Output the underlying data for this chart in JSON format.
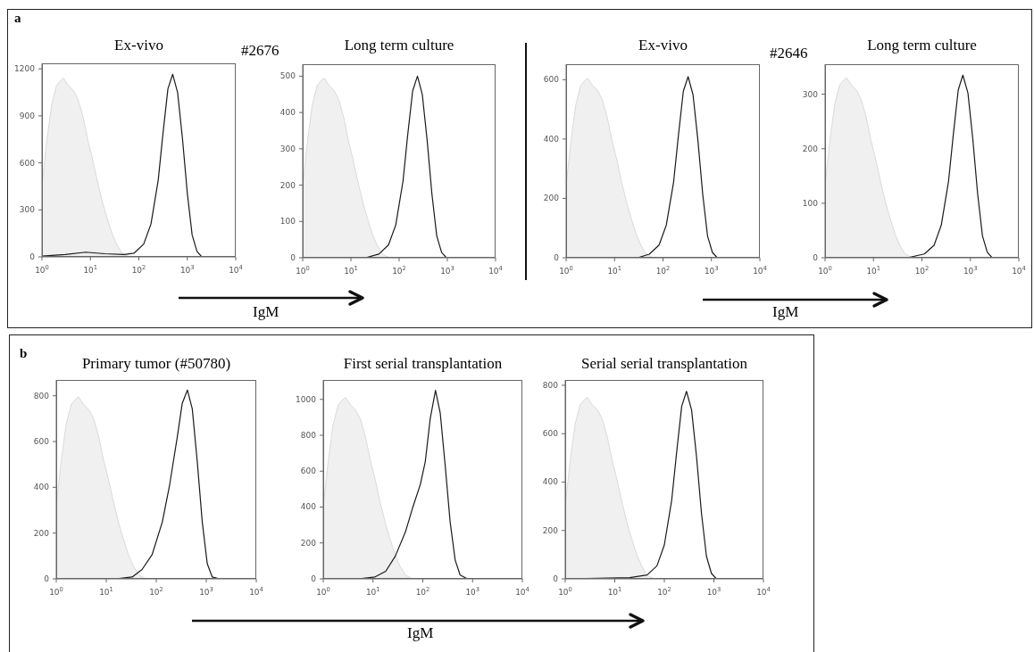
{
  "chart_data": [
    {
      "type": "line",
      "title": "Ex-vivo",
      "annotations": [
        "a",
        "#2676",
        "IgM"
      ],
      "log": "x",
      "xlim": [
        1,
        10000
      ],
      "xticks": [
        {
          "value": 1,
          "label": "10$^{0}$"
        },
        {
          "value": 10,
          "label": "10$^{1}$"
        },
        {
          "value": 100,
          "label": "10$^{2}$"
        },
        {
          "value": 1000,
          "label": "10$^{3}$"
        },
        {
          "value": 10000,
          "label": "10$^{4}$"
        }
      ],
      "ylim": [
        0,
        1235
      ],
      "yticks": [
        0,
        300,
        600,
        900,
        1200
      ],
      "series": [
        {
          "type": "area",
          "color": "#f0f0f0",
          "x": [
            1,
            1.26,
            1.58,
            2,
            2.5,
            2.8,
            3.5,
            4.5,
            5.6,
            7.1,
            8.9,
            11,
            14,
            18,
            22,
            28,
            35,
            45,
            63,
            160,
            10000
          ],
          "values": [
            456,
            741,
            969,
            1094,
            1129,
            1140,
            1094,
            1060,
            1003,
            889,
            741,
            627,
            479,
            342,
            251,
            148,
            80,
            23,
            0,
            0,
            0
          ]
        },
        {
          "color": "#1a1a1a",
          "x": [
            1,
            3,
            8,
            20,
            50,
            79,
            126,
            178,
            251,
            316,
            398,
            500,
            631,
            794,
            1000,
            1259,
            1585,
            1995,
            2818,
            10000
          ],
          "values": [
            5,
            15,
            30,
            20,
            15,
            23,
            82,
            210,
            489,
            792,
            1072,
            1165,
            1049,
            757,
            408,
            140,
            35,
            0,
            0,
            0
          ]
        }
      ]
    },
    {
      "type": "line",
      "title": "Long term culture",
      "log": "x",
      "xlim": [
        1,
        10000
      ],
      "xticks": [
        {
          "value": 1,
          "label": "10$^{0}$"
        },
        {
          "value": 10,
          "label": "10$^{1}$"
        },
        {
          "value": 100,
          "label": "10$^{2}$"
        },
        {
          "value": 1000,
          "label": "10$^{3}$"
        },
        {
          "value": 10000,
          "label": "10$^{4}$"
        }
      ],
      "ylim": [
        0,
        533
      ],
      "yticks": [
        0,
        100,
        200,
        300,
        400,
        500
      ],
      "series": [
        {
          "type": "area",
          "color": "#f0f0f0",
          "x": [
            1,
            1.26,
            1.58,
            2,
            2.5,
            2.8,
            3.5,
            4.5,
            5.6,
            7.1,
            8.9,
            11,
            14,
            18,
            22,
            28,
            35,
            45,
            63,
            160,
            10000
          ],
          "values": [
            198,
            322,
            421,
            475,
            490,
            495,
            475,
            460,
            436,
            386,
            322,
            272,
            208,
            149,
            109,
            64,
            35,
            10,
            0,
            0,
            0
          ]
        },
        {
          "color": "#1a1a1a",
          "x": [
            1,
            20,
            38,
            60,
            85,
            120,
            151,
            191,
            240,
            302,
            380,
            479,
            603,
            759,
            955,
            1349,
            10000
          ],
          "values": [
            0,
            0,
            10,
            35,
            90,
            210,
            340,
            460,
            500,
            450,
            325,
            175,
            60,
            15,
            0,
            0,
            0
          ]
        }
      ]
    },
    {
      "type": "line",
      "title": "Ex-vivo",
      "annotations": [
        "#2646",
        "IgM"
      ],
      "log": "x",
      "xlim": [
        1,
        10000
      ],
      "xticks": [
        {
          "value": 1,
          "label": "10$^{0}$"
        },
        {
          "value": 10,
          "label": "10$^{1}$"
        },
        {
          "value": 100,
          "label": "10$^{2}$"
        },
        {
          "value": 1000,
          "label": "10$^{3}$"
        },
        {
          "value": 10000,
          "label": "10$^{4}$"
        }
      ],
      "ylim": [
        0,
        652
      ],
      "yticks": [
        0,
        200,
        400,
        600
      ],
      "series": [
        {
          "type": "area",
          "color": "#f0f0f0",
          "x": [
            1,
            1.26,
            1.58,
            2,
            2.5,
            2.8,
            3.5,
            4.5,
            5.6,
            7.1,
            8.9,
            11,
            14,
            18,
            22,
            28,
            35,
            45,
            63,
            160,
            10000
          ],
          "values": [
            242,
            393,
            514,
            581,
            599,
            605,
            581,
            563,
            532,
            472,
            393,
            333,
            254,
            182,
            133,
            79,
            42,
            12,
            0,
            0,
            0
          ]
        },
        {
          "color": "#1a1a1a",
          "x": [
            1,
            30,
            52,
            83,
            117,
            166,
            209,
            263,
            330,
            417,
            525,
            661,
            832,
            1047,
            1318,
            1862,
            10000
          ],
          "values": [
            0,
            0,
            12,
            43,
            110,
            256,
            415,
            561,
            610,
            549,
            397,
            214,
            73,
            18,
            0,
            0,
            0
          ]
        }
      ]
    },
    {
      "type": "line",
      "title": "Long term culture",
      "log": "x",
      "xlim": [
        1,
        10000
      ],
      "xticks": [
        {
          "value": 1,
          "label": "10$^{0}$"
        },
        {
          "value": 10,
          "label": "10$^{1}$"
        },
        {
          "value": 100,
          "label": "10$^{2}$"
        },
        {
          "value": 1000,
          "label": "10$^{3}$"
        },
        {
          "value": 10000,
          "label": "10$^{4}$"
        }
      ],
      "ylim": [
        0,
        355
      ],
      "yticks": [
        0,
        100,
        200,
        300
      ],
      "series": [
        {
          "type": "area",
          "color": "#f0f0f0",
          "x": [
            1,
            1.26,
            1.58,
            2,
            2.5,
            2.8,
            3.5,
            4.5,
            5.6,
            7.1,
            8.9,
            11,
            14,
            18,
            22,
            28,
            35,
            45,
            63,
            160,
            10000
          ],
          "values": [
            132,
            215,
            281,
            317,
            327,
            330,
            317,
            307,
            290,
            257,
            215,
            182,
            139,
            99,
            73,
            43,
            23,
            7,
            0,
            0,
            0
          ]
        },
        {
          "color": "#1a1a1a",
          "x": [
            1,
            50,
            112,
            178,
            251,
            355,
            447,
            562,
            700,
            891,
            1122,
            1413,
            1778,
            2239,
            2818,
            3981,
            10000
          ],
          "values": [
            0,
            0,
            7,
            23,
            60,
            141,
            228,
            308,
            335,
            302,
            218,
            117,
            40,
            10,
            0,
            0,
            0
          ]
        }
      ]
    },
    {
      "type": "line",
      "title": "Primary tumor (#50780)",
      "annotations": [
        "b",
        "IgM"
      ],
      "log": "x",
      "xlim": [
        1,
        10000
      ],
      "xticks": [
        {
          "value": 1,
          "label": "10$^{0}$"
        },
        {
          "value": 10,
          "label": "10$^{1}$"
        },
        {
          "value": 100,
          "label": "10$^{2}$"
        },
        {
          "value": 1000,
          "label": "10$^{3}$"
        },
        {
          "value": 10000,
          "label": "10$^{4}$"
        }
      ],
      "ylim": [
        0,
        869
      ],
      "yticks": [
        0,
        200,
        400,
        600,
        800
      ],
      "series": [
        {
          "type": "area",
          "color": "#f0f0f0",
          "x": [
            1,
            1.26,
            1.58,
            2,
            2.5,
            2.8,
            3.5,
            4.5,
            5.6,
            7.1,
            8.9,
            11,
            14,
            18,
            22,
            28,
            35,
            45,
            63,
            160,
            10000
          ],
          "values": [
            318,
            517,
            676,
            763,
            787,
            795,
            763,
            739,
            700,
            620,
            517,
            437,
            334,
            239,
            175,
            103,
            56,
            16,
            0,
            0,
            0
          ]
        },
        {
          "color": "#1a1a1a",
          "x": [
            1,
            15,
            33,
            52,
            83,
            132,
            186,
            263,
            331,
            420,
            525,
            661,
            832,
            1047,
            1318,
            1862,
            10000
          ],
          "values": [
            0,
            0,
            8,
            41,
            107,
            248,
            413,
            619,
            767,
            825,
            743,
            512,
            248,
            66,
            8,
            0,
            0
          ]
        }
      ]
    },
    {
      "type": "line",
      "title": "First serial transplantation",
      "log": "x",
      "xlim": [
        1,
        10000
      ],
      "xticks": [
        {
          "value": 1,
          "label": "10$^{0}$"
        },
        {
          "value": 10,
          "label": "10$^{1}$"
        },
        {
          "value": 100,
          "label": "10$^{2}$"
        },
        {
          "value": 1000,
          "label": "10$^{3}$"
        },
        {
          "value": 10000,
          "label": "10$^{4}$"
        }
      ],
      "ylim": [
        0,
        1108
      ],
      "yticks": [
        0,
        200,
        400,
        600,
        800,
        1000
      ],
      "series": [
        {
          "type": "area",
          "color": "#f0f0f0",
          "x": [
            1,
            1.26,
            1.58,
            2,
            2.5,
            2.8,
            3.5,
            4.5,
            5.6,
            7.1,
            8.9,
            11,
            14,
            18,
            22,
            28,
            35,
            45,
            63,
            160,
            10000
          ],
          "values": [
            404,
            657,
            859,
            970,
            1000,
            1010,
            970,
            939,
            889,
            788,
            657,
            556,
            424,
            303,
            222,
            131,
            71,
            20,
            0,
            0,
            0
          ]
        },
        {
          "color": "#1a1a1a",
          "x": [
            1,
            5,
            11,
            18,
            28,
            45,
            63,
            89,
            112,
            141,
            180,
            224,
            282,
            355,
            447,
            562,
            794,
            10000
          ],
          "values": [
            0,
            0,
            11,
            42,
            126,
            263,
            399,
            525,
            651,
            893,
            1050,
            924,
            630,
            315,
            105,
            21,
            0,
            0
          ]
        }
      ]
    },
    {
      "type": "line",
      "title": "Serial serial transplantation",
      "log": "x",
      "xlim": [
        1,
        10000
      ],
      "xticks": [
        {
          "value": 1,
          "label": "10$^{0}$"
        },
        {
          "value": 10,
          "label": "10$^{1}$"
        },
        {
          "value": 100,
          "label": "10$^{2}$"
        },
        {
          "value": 1000,
          "label": "10$^{3}$"
        },
        {
          "value": 10000,
          "label": "10$^{4}$"
        }
      ],
      "ylim": [
        0,
        822
      ],
      "yticks": [
        0,
        200,
        400,
        600,
        800
      ],
      "series": [
        {
          "type": "area",
          "color": "#f0f0f0",
          "x": [
            1,
            1.26,
            1.58,
            2,
            2.5,
            2.8,
            3.5,
            4.5,
            5.6,
            7.1,
            8.9,
            11,
            14,
            18,
            22,
            28,
            35,
            45,
            63,
            160,
            10000
          ],
          "values": [
            300,
            488,
            638,
            720,
            743,
            750,
            720,
            698,
            660,
            585,
            488,
            413,
            315,
            225,
            165,
            98,
            53,
            15,
            0,
            0,
            0
          ]
        },
        {
          "color": "#1a1a1a",
          "x": [
            1,
            20,
            45,
            71,
            100,
            141,
            178,
            224,
            280,
            355,
            447,
            562,
            708,
            891,
            1122,
            1585,
            10000
          ],
          "values": [
            0,
            5,
            16,
            54,
            140,
            326,
            527,
            713,
            775,
            698,
            504,
            271,
            93,
            23,
            0,
            0,
            0
          ]
        }
      ]
    }
  ]
}
